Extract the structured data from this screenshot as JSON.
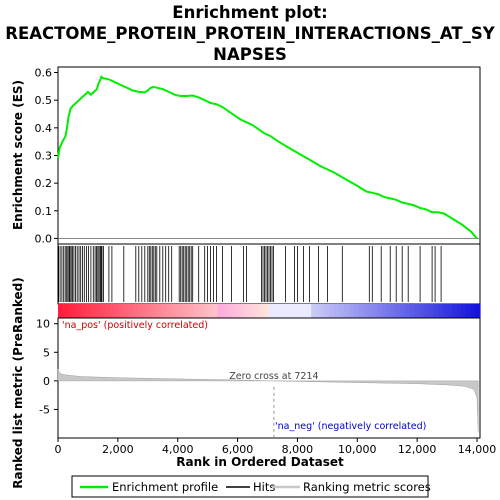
{
  "chart_data": {
    "type": "line",
    "title_lines": [
      "Enrichment plot:",
      "REACTOME_PROTEIN_PROTEIN_INTERACTIONS_AT_SY",
      "NAPSES"
    ],
    "top_panel": {
      "ylabel": "Enrichment score (ES)",
      "ylim": [
        -0.02,
        0.62
      ],
      "yticks": [
        "0.0",
        "0.1",
        "0.2",
        "0.3",
        "0.4",
        "0.5",
        "0.6"
      ],
      "series": [
        {
          "name": "Enrichment profile",
          "color": "#00ee00",
          "x": [
            0,
            60,
            150,
            250,
            300,
            350,
            420,
            500,
            600,
            700,
            800,
            900,
            1000,
            1100,
            1200,
            1300,
            1350,
            1400,
            1450,
            1500,
            1700,
            1900,
            2100,
            2300,
            2500,
            2700,
            2900,
            3000,
            3100,
            3200,
            3300,
            3500,
            3700,
            3900,
            4100,
            4300,
            4500,
            4700,
            4900,
            5100,
            5300,
            5500,
            5700,
            5900,
            6100,
            6300,
            6500,
            6700,
            6900,
            7100,
            7300,
            7600,
            8000,
            8400,
            8800,
            9200,
            9600,
            10000,
            10300,
            10500,
            10700,
            10900,
            11100,
            11300,
            11500,
            11700,
            11900,
            12100,
            12300,
            12500,
            12700,
            12900,
            13200,
            13500,
            13800,
            14000
          ],
          "y": [
            0.29,
            0.33,
            0.35,
            0.37,
            0.4,
            0.44,
            0.47,
            0.48,
            0.49,
            0.5,
            0.51,
            0.52,
            0.53,
            0.52,
            0.53,
            0.54,
            0.56,
            0.57,
            0.585,
            0.58,
            0.575,
            0.565,
            0.555,
            0.545,
            0.535,
            0.53,
            0.528,
            0.535,
            0.545,
            0.548,
            0.545,
            0.54,
            0.53,
            0.52,
            0.515,
            0.515,
            0.517,
            0.51,
            0.5,
            0.49,
            0.485,
            0.475,
            0.46,
            0.445,
            0.43,
            0.42,
            0.41,
            0.395,
            0.38,
            0.37,
            0.355,
            0.335,
            0.31,
            0.285,
            0.26,
            0.24,
            0.215,
            0.19,
            0.17,
            0.165,
            0.16,
            0.15,
            0.145,
            0.14,
            0.13,
            0.125,
            0.12,
            0.11,
            0.105,
            0.095,
            0.095,
            0.09,
            0.07,
            0.05,
            0.025,
            0.0
          ]
        }
      ]
    },
    "hits": [
      20,
      70,
      130,
      190,
      240,
      290,
      330,
      370,
      400,
      440,
      480,
      530,
      580,
      640,
      700,
      760,
      820,
      880,
      950,
      1020,
      1100,
      1180,
      1240,
      1290,
      1330,
      1370,
      1410,
      1440,
      1470,
      1520,
      1700,
      1800,
      2200,
      2600,
      2700,
      2800,
      2900,
      3000,
      3050,
      3100,
      3150,
      3200,
      3250,
      3300,
      3400,
      3500,
      3600,
      3700,
      3800,
      4050,
      4100,
      4150,
      4200,
      4250,
      4300,
      4350,
      4400,
      4450,
      4500,
      4700,
      4900,
      5000,
      5100,
      5200,
      5300,
      5500,
      5800,
      6200,
      6300,
      6800,
      6850,
      6900,
      6950,
      7000,
      7050,
      7100,
      7150,
      7200,
      7600,
      7900,
      8000,
      8200,
      8400,
      8700,
      9000,
      9500,
      10400,
      10500,
      10800,
      11100,
      11300,
      11500,
      11700,
      12100,
      12500,
      12600,
      12800
    ],
    "ranked_metric": {
      "ylabel": "Ranked list metric (PreRanked)",
      "ylim": [
        -10,
        11
      ],
      "yticks": [
        "-5",
        "0",
        "5",
        "10"
      ],
      "series": [
        {
          "name": "Ranking metric scores",
          "x": [
            0,
            30,
            100,
            300,
            800,
            2000,
            4000,
            6000,
            7214,
            8500,
            10000,
            12000,
            13000,
            13600,
            13900,
            14000,
            14040
          ],
          "y": [
            2.1,
            1.6,
            1.2,
            1.0,
            0.75,
            0.55,
            0.35,
            0.15,
            0.0,
            -0.15,
            -0.3,
            -0.5,
            -0.7,
            -0.95,
            -1.5,
            -3.0,
            -9.0
          ]
        }
      ],
      "zero_cross_label": "Zero cross at 7214",
      "pos_label": "'na_pos' (positively correlated)",
      "neg_label": "'na_neg' (negatively correlated)"
    },
    "xlabel": "Rank in Ordered Dataset",
    "xlim": [
      0,
      14100
    ],
    "xticks": [
      "0",
      "2,000",
      "4,000",
      "6,000",
      "8,000",
      "10,000",
      "12,000",
      "14,000"
    ],
    "legend": {
      "placement": "bottom",
      "entries": [
        {
          "label": "Enrichment profile",
          "color": "#00ee00"
        },
        {
          "label": "Hits",
          "color": "#000000"
        },
        {
          "label": "Ranking metric scores",
          "color": "#c8c8c8"
        }
      ]
    }
  }
}
